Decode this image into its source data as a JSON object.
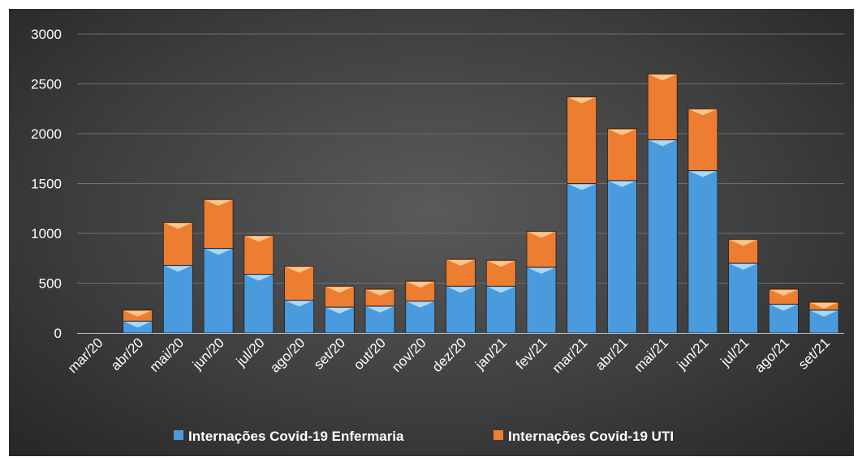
{
  "chart_data": {
    "type": "bar",
    "stacked": true,
    "categories": [
      "mar/20",
      "abr/20",
      "mai/20",
      "jun/20",
      "jul/20",
      "ago/20",
      "set/20",
      "out/20",
      "nov/20",
      "dez/20",
      "jan/21",
      "fev/21",
      "mar/21",
      "abr/21",
      "mai/21",
      "jun/21",
      "jul/21",
      "ago/21",
      "set/21"
    ],
    "series": [
      {
        "name": "Internações Covid-19 Enfermaria",
        "color": "#4a9bde",
        "values": [
          0,
          120,
          680,
          850,
          590,
          330,
          260,
          270,
          320,
          470,
          470,
          660,
          1500,
          1530,
          1940,
          1630,
          700,
          290,
          230
        ]
      },
      {
        "name": "Internações Covid-19 UTI",
        "color": "#ed7d31",
        "values": [
          0,
          110,
          430,
          490,
          390,
          340,
          210,
          170,
          200,
          270,
          260,
          360,
          870,
          520,
          660,
          620,
          240,
          150,
          80
        ]
      }
    ],
    "yticks": [
      "0",
      "500",
      "1000",
      "1500",
      "2000",
      "2500",
      "3000"
    ],
    "ylim": [
      0,
      3000
    ],
    "grid": true,
    "legend_position": "bottom"
  }
}
